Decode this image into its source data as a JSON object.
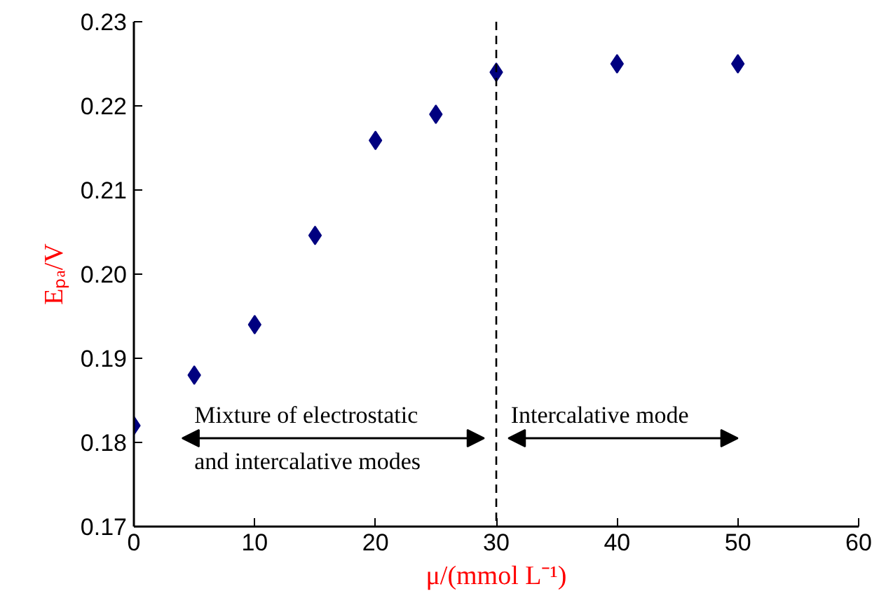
{
  "chart_data": {
    "type": "scatter",
    "xlabel": "μ/(mmol L⁻¹)",
    "ylabel": "Eₚₐ/V",
    "x": [
      0,
      5,
      10,
      15,
      20,
      25,
      30,
      40,
      50
    ],
    "series": [
      {
        "color": "#000080",
        "values": [
          0.182,
          0.188,
          0.194,
          0.2046,
          0.2159,
          0.219,
          0.224,
          0.225,
          0.225
        ]
      }
    ],
    "marker": "diamond",
    "grid": false,
    "xlim": [
      0,
      60
    ],
    "xticks": [
      0,
      10,
      20,
      30,
      40,
      50,
      60
    ],
    "ylim": [
      0.17,
      0.23
    ],
    "yticks": [
      0.17,
      0.18,
      0.19,
      {
        "value": 0.2,
        "label": "0.20"
      },
      0.21,
      0.22,
      0.23
    ],
    "ref_lines": [
      {
        "axis": "x",
        "value": 30,
        "line_style": "dashed",
        "color": "#000000"
      }
    ],
    "annotations": [
      "Mixture of electrostatic\nand intercalative modes",
      "Intercalative mode"
    ]
  }
}
